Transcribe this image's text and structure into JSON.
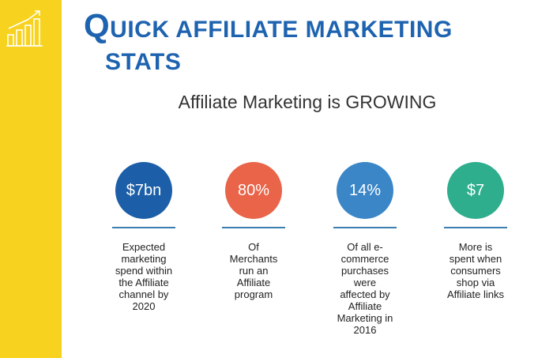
{
  "header": {
    "title_first_letter": "Q",
    "title_rest": "UICK AFFILIATE MARKETING",
    "title_line2": "STATS",
    "subtitle": "Affiliate Marketing is GROWING"
  },
  "icons": {
    "growth": "bar-chart-growth-icon"
  },
  "colors": {
    "sidebar": "#F7D21F",
    "title": "#1E63B0",
    "stat_1": "#1C5FA8",
    "stat_2": "#E96449",
    "stat_3": "#3B86C7",
    "stat_4": "#2EAE8D"
  },
  "stats": [
    {
      "value": "$7bn",
      "line1": "Expected",
      "line2": "marketing",
      "line3": "spend within",
      "line4": "the Affiliate",
      "line5": "channel by",
      "line6": "2020"
    },
    {
      "value": "80%",
      "line1": "Of",
      "line2": "Merchants",
      "line3": "run an",
      "line4": "Affiliate",
      "line5": "program"
    },
    {
      "value": "14%",
      "line1": "Of all e-",
      "line2": "commerce",
      "line3": "purchases",
      "line4": "were",
      "line5": "affected by",
      "line6": "Affiliate",
      "line7": "Marketing in",
      "line8": "2016"
    },
    {
      "value": "$7",
      "line1": "More is",
      "line2": "spent when",
      "line3": "consumers",
      "line4": "shop via",
      "line5": "Affiliate links"
    }
  ]
}
